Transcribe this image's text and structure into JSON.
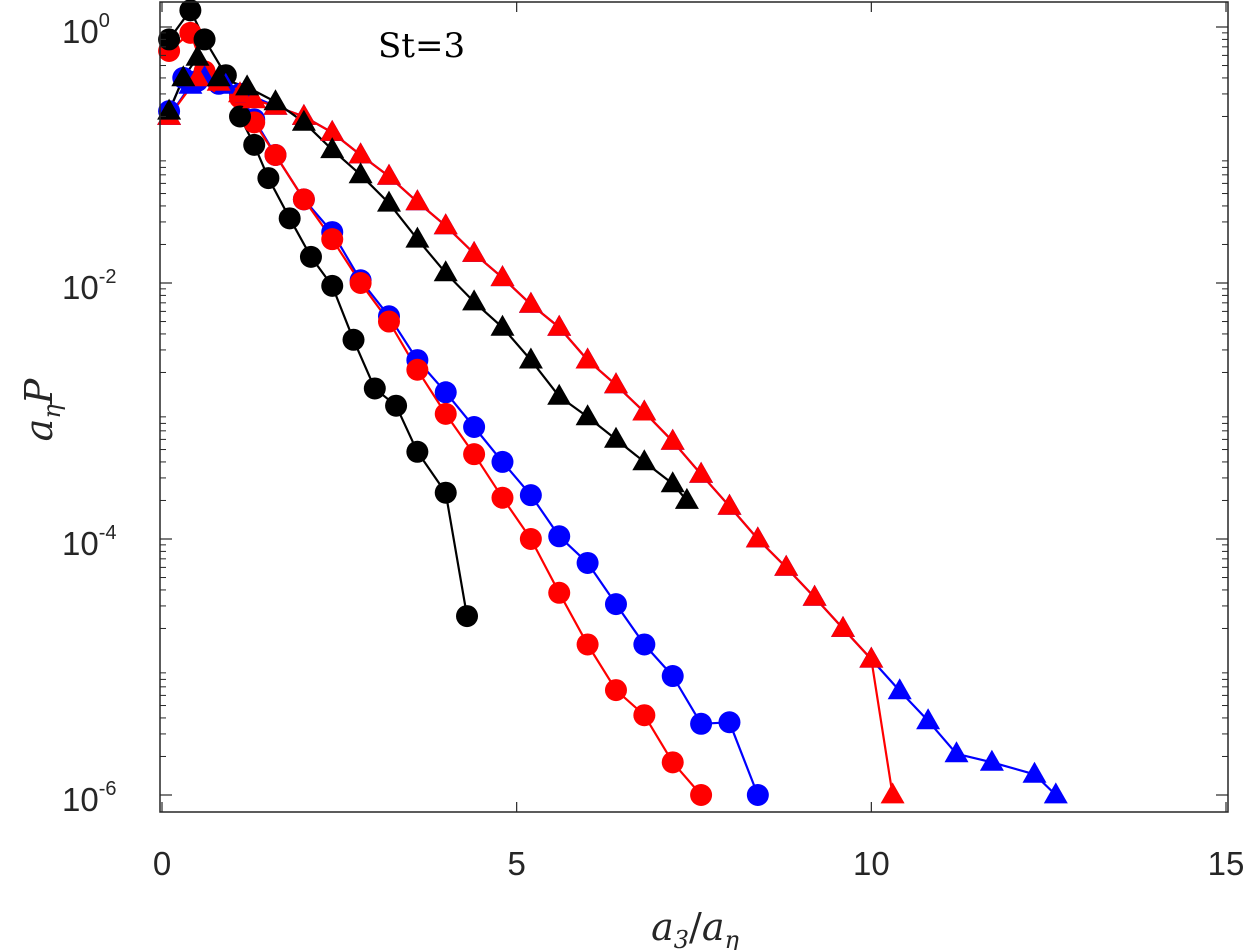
{
  "chart_data": {
    "type": "line",
    "title": "",
    "annotation": "St=3",
    "xlabel": {
      "main": "a",
      "sub1": "3",
      "slash": "/",
      "main2": "a",
      "sub2": "η"
    },
    "ylabel": {
      "main": "a",
      "sub": "η",
      "var": "P"
    },
    "xlim": [
      0,
      15
    ],
    "ylim": [
      1e-06,
      2.5
    ],
    "yscale": "log",
    "x_ticks": [
      0,
      5,
      10,
      15
    ],
    "x_tick_labels": [
      "0",
      "5",
      "10",
      "15"
    ],
    "y_ticks": [
      1e-06,
      0.0001,
      0.01,
      1
    ],
    "y_tick_labels": [
      {
        "base": "10",
        "exp": "-6"
      },
      {
        "base": "10",
        "exp": "-4"
      },
      {
        "base": "10",
        "exp": "-2"
      },
      {
        "base": "10",
        "exp": "0"
      }
    ],
    "series": [
      {
        "name": "blue-circles",
        "color": "#0000ff",
        "marker": "circle",
        "x": [
          0.1,
          0.3,
          0.5,
          0.8,
          1.1,
          1.3,
          1.6,
          2.0,
          2.4,
          2.8,
          3.2,
          3.6,
          4.0,
          4.4,
          4.8,
          5.2,
          5.6,
          6.0,
          6.4,
          6.8,
          7.2,
          7.6,
          8.0,
          8.4
        ],
        "y": [
          0.22,
          0.4,
          0.38,
          0.36,
          0.3,
          0.19,
          0.1,
          0.045,
          0.025,
          0.0105,
          0.0055,
          0.0025,
          0.0014,
          0.00075,
          0.0004,
          0.00022,
          0.000105,
          6.5e-05,
          3.1e-05,
          1.5e-05,
          8.5e-06,
          3.6e-06,
          3.7e-06,
          1e-06
        ]
      },
      {
        "name": "red-circles",
        "color": "#ff0000",
        "marker": "circle",
        "x": [
          0.1,
          0.4,
          0.6,
          0.8,
          1.1,
          1.3,
          1.6,
          2.0,
          2.4,
          2.8,
          3.2,
          3.6,
          4.0,
          4.4,
          4.8,
          5.2,
          5.6,
          6.0,
          6.4,
          6.8,
          7.2,
          7.6
        ],
        "y": [
          0.65,
          0.9,
          0.45,
          0.37,
          0.28,
          0.18,
          0.1,
          0.045,
          0.022,
          0.01,
          0.005,
          0.0021,
          0.00095,
          0.00046,
          0.00021,
          0.0001,
          3.8e-05,
          1.5e-05,
          6.6e-06,
          4.2e-06,
          1.8e-06,
          1e-06
        ]
      },
      {
        "name": "black-circles",
        "color": "#000000",
        "marker": "circle",
        "x": [
          0.1,
          0.4,
          0.6,
          0.9,
          1.1,
          1.3,
          1.5,
          1.8,
          2.1,
          2.4,
          2.7,
          3.0,
          3.3,
          3.6,
          4.0,
          4.3
        ],
        "y": [
          0.8,
          1.35,
          0.8,
          0.42,
          0.2,
          0.12,
          0.066,
          0.032,
          0.016,
          0.0095,
          0.0036,
          0.0015,
          0.0011,
          0.00048,
          0.00023,
          2.5e-05
        ]
      },
      {
        "name": "blue-triangles",
        "color": "#0000ff",
        "marker": "triangle",
        "x": [
          0.1,
          0.4,
          0.6,
          0.9,
          1.2,
          1.6,
          2.0,
          2.4,
          2.8,
          3.2,
          3.6,
          4.0,
          4.4,
          4.8,
          5.2,
          5.6,
          6.0,
          6.4,
          6.8,
          7.2,
          7.6,
          8.0,
          8.4,
          8.8,
          9.2,
          9.6,
          10.0,
          10.4,
          10.8,
          11.2,
          11.7,
          12.3,
          12.6
        ],
        "y": [
          0.2,
          0.35,
          0.4,
          0.35,
          0.3,
          0.24,
          0.2,
          0.15,
          0.1,
          0.068,
          0.043,
          0.028,
          0.017,
          0.011,
          0.0068,
          0.0045,
          0.0025,
          0.0016,
          0.00098,
          0.00058,
          0.00032,
          0.00018,
          0.0001,
          6e-05,
          3.5e-05,
          2e-05,
          1.15e-05,
          6.5e-06,
          3.8e-06,
          2.1e-06,
          1.8e-06,
          1.45e-06,
          1e-06
        ]
      },
      {
        "name": "red-triangles",
        "color": "#ff0000",
        "marker": "triangle",
        "x": [
          0.1,
          0.5,
          0.8,
          1.1,
          1.3,
          1.6,
          2.0,
          2.4,
          2.8,
          3.2,
          3.6,
          4.0,
          4.4,
          4.8,
          5.2,
          5.6,
          6.0,
          6.4,
          6.8,
          7.2,
          7.6,
          8.0,
          8.4,
          8.8,
          9.2,
          9.6,
          10.0,
          10.3
        ],
        "y": [
          0.2,
          0.4,
          0.37,
          0.3,
          0.27,
          0.24,
          0.2,
          0.15,
          0.1,
          0.068,
          0.043,
          0.028,
          0.017,
          0.011,
          0.0068,
          0.0045,
          0.0025,
          0.0016,
          0.00098,
          0.00058,
          0.00032,
          0.00018,
          0.0001,
          6e-05,
          3.5e-05,
          2e-05,
          1.15e-05,
          1e-06
        ]
      },
      {
        "name": "black-triangles",
        "color": "#000000",
        "marker": "triangle",
        "x": [
          0.1,
          0.3,
          0.5,
          0.8,
          1.2,
          1.6,
          2.0,
          2.4,
          2.8,
          3.2,
          3.6,
          4.0,
          4.4,
          4.8,
          5.2,
          5.6,
          6.0,
          6.4,
          6.8,
          7.2,
          7.4
        ],
        "y": [
          0.22,
          0.4,
          0.58,
          0.4,
          0.34,
          0.26,
          0.18,
          0.11,
          0.07,
          0.042,
          0.022,
          0.012,
          0.0071,
          0.0045,
          0.0025,
          0.0013,
          0.0009,
          0.0006,
          0.0004,
          0.00027,
          0.0002
        ]
      }
    ]
  }
}
